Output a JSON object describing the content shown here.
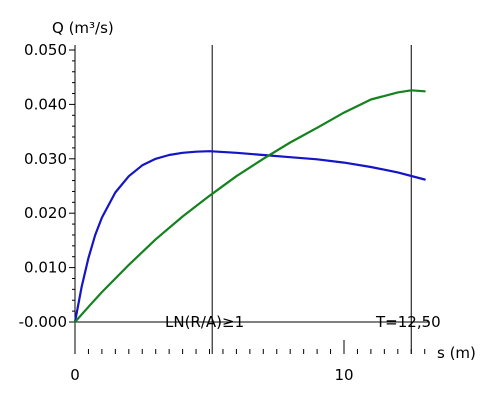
{
  "chart_data": {
    "type": "line",
    "ylabel": "Q (m³/s)",
    "xlabel": "s (m)",
    "xlim": [
      0,
      13
    ],
    "ylim": [
      0,
      0.05
    ],
    "y_ticks": [
      {
        "value": 0.0,
        "label": "-0.000"
      },
      {
        "value": 0.01,
        "label": "0.010"
      },
      {
        "value": 0.02,
        "label": "0.020"
      },
      {
        "value": 0.03,
        "label": "0.030"
      },
      {
        "value": 0.04,
        "label": "0.040"
      },
      {
        "value": 0.05,
        "label": "0.050"
      }
    ],
    "x_ticks": [
      {
        "value": 0,
        "label": "0"
      },
      {
        "value": 10,
        "label": "10"
      }
    ],
    "grid": false,
    "series": [
      {
        "color": "#1414c8",
        "x": [
          0,
          0.25,
          0.5,
          0.75,
          1.0,
          1.5,
          2.0,
          2.5,
          3.0,
          3.5,
          4.0,
          4.5,
          5.0,
          6.0,
          7.0,
          8.0,
          9.0,
          10.0,
          11.0,
          12.0,
          13.0
        ],
        "y": [
          0,
          0.0065,
          0.0118,
          0.016,
          0.0192,
          0.0238,
          0.0268,
          0.0288,
          0.03,
          0.0307,
          0.0311,
          0.0313,
          0.0314,
          0.0311,
          0.0307,
          0.0303,
          0.0299,
          0.0293,
          0.0285,
          0.0275,
          0.0262
        ]
      },
      {
        "color": "#14821e",
        "x": [
          0,
          0.5,
          1.0,
          2.0,
          3.0,
          4.0,
          5.0,
          6.0,
          7.0,
          8.0,
          9.0,
          10.0,
          11.0,
          12.0,
          12.5,
          13.0
        ],
        "y": [
          0,
          0.0028,
          0.0055,
          0.0105,
          0.0152,
          0.0194,
          0.0232,
          0.0268,
          0.03,
          0.033,
          0.0357,
          0.0385,
          0.0409,
          0.0422,
          0.0426,
          0.0424
        ]
      }
    ],
    "annotations": [
      {
        "type": "vline",
        "x": 5.1,
        "label": "LN(R/A)≥1"
      },
      {
        "type": "vline",
        "x": 12.5,
        "label": "T=12,50"
      }
    ]
  }
}
